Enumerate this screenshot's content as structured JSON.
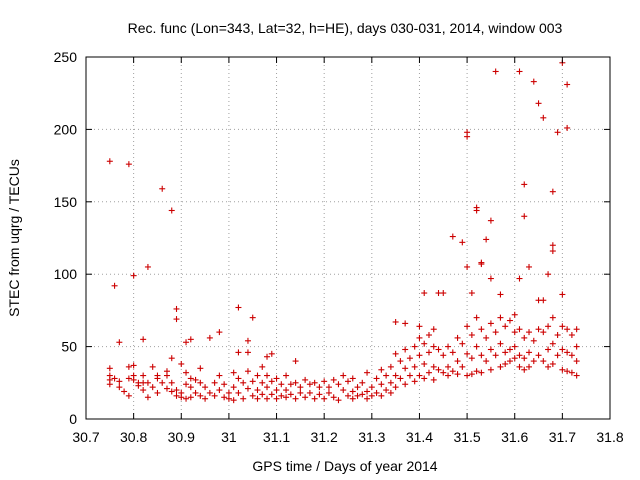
{
  "chart_data": {
    "type": "scatter",
    "title": "Rec. func (Lon=343, Lat=32, h=HE), days 030-031, 2014, window 003",
    "xlabel": "GPS time / Days of year 2014",
    "ylabel": "STEC from uqrg / TECUs",
    "xlim": [
      30.7,
      31.8
    ],
    "ylim": [
      0,
      250
    ],
    "xticks": [
      "30.7",
      "30.8",
      "30.9",
      "31",
      "31.1",
      "31.2",
      "31.3",
      "31.4",
      "31.5",
      "31.6",
      "31.7",
      "31.8"
    ],
    "yticks": [
      "0",
      "50",
      "100",
      "150",
      "200",
      "250"
    ],
    "grid": true,
    "marker": "+",
    "color": "#cc0000",
    "series": [
      {
        "name": "STEC",
        "points": [
          [
            30.75,
            178
          ],
          [
            30.76,
            92
          ],
          [
            30.77,
            53
          ],
          [
            30.79,
            176
          ],
          [
            30.8,
            99
          ],
          [
            30.82,
            55
          ],
          [
            30.83,
            105
          ],
          [
            30.86,
            159
          ],
          [
            30.88,
            144
          ],
          [
            30.89,
            76
          ],
          [
            30.89,
            69
          ],
          [
            30.91,
            53
          ],
          [
            30.92,
            55
          ],
          [
            30.94,
            35
          ],
          [
            30.96,
            56
          ],
          [
            30.98,
            60
          ],
          [
            31.02,
            77
          ],
          [
            31.02,
            46
          ],
          [
            31.04,
            54
          ],
          [
            31.04,
            46
          ],
          [
            31.05,
            70
          ],
          [
            31.07,
            36
          ],
          [
            31.08,
            43
          ],
          [
            31.09,
            45
          ],
          [
            31.14,
            40
          ],
          [
            31.35,
            67
          ],
          [
            31.37,
            66
          ],
          [
            31.4,
            64
          ],
          [
            31.41,
            87
          ],
          [
            31.43,
            62
          ],
          [
            31.44,
            87
          ],
          [
            31.45,
            87
          ],
          [
            31.47,
            126
          ],
          [
            31.49,
            122
          ],
          [
            31.5,
            105
          ],
          [
            31.5,
            198
          ],
          [
            31.5,
            195
          ],
          [
            31.51,
            87
          ],
          [
            31.52,
            146
          ],
          [
            31.52,
            144
          ],
          [
            31.53,
            108
          ],
          [
            31.53,
            107
          ],
          [
            31.54,
            124
          ],
          [
            31.55,
            137
          ],
          [
            31.55,
            97
          ],
          [
            31.56,
            240
          ],
          [
            31.57,
            86
          ],
          [
            31.6,
            60
          ],
          [
            31.61,
            240
          ],
          [
            31.61,
            97
          ],
          [
            31.62,
            162
          ],
          [
            31.62,
            140
          ],
          [
            31.63,
            105
          ],
          [
            31.64,
            233
          ],
          [
            31.65,
            218
          ],
          [
            31.66,
            208
          ],
          [
            31.67,
            100
          ],
          [
            31.68,
            157
          ],
          [
            31.68,
            120
          ],
          [
            31.68,
            116
          ],
          [
            31.69,
            198
          ],
          [
            31.7,
            246
          ],
          [
            31.7,
            86
          ],
          [
            31.71,
            231
          ],
          [
            31.71,
            201
          ],
          [
            30.75,
            35
          ],
          [
            30.75,
            30
          ],
          [
            30.75,
            27
          ],
          [
            30.75,
            24
          ],
          [
            30.76,
            28
          ],
          [
            30.77,
            26
          ],
          [
            30.77,
            22
          ],
          [
            30.78,
            19
          ],
          [
            30.79,
            36
          ],
          [
            30.79,
            28
          ],
          [
            30.79,
            16
          ],
          [
            30.8,
            37
          ],
          [
            30.8,
            30
          ],
          [
            30.8,
            27
          ],
          [
            30.81,
            25
          ],
          [
            30.81,
            23
          ],
          [
            30.82,
            30
          ],
          [
            30.82,
            25
          ],
          [
            30.82,
            20
          ],
          [
            30.83,
            25
          ],
          [
            30.83,
            15
          ],
          [
            30.84,
            22
          ],
          [
            30.84,
            36
          ],
          [
            30.85,
            30
          ],
          [
            30.85,
            28
          ],
          [
            30.85,
            18
          ],
          [
            30.86,
            25
          ],
          [
            30.87,
            33
          ],
          [
            30.87,
            30
          ],
          [
            30.87,
            21
          ],
          [
            30.88,
            42
          ],
          [
            30.88,
            25
          ],
          [
            30.88,
            19
          ],
          [
            30.89,
            20
          ],
          [
            30.89,
            16
          ],
          [
            30.9,
            38
          ],
          [
            30.9,
            18
          ],
          [
            30.9,
            15
          ],
          [
            30.91,
            32
          ],
          [
            30.91,
            14
          ],
          [
            30.91,
            24
          ],
          [
            30.92,
            28
          ],
          [
            30.92,
            22
          ],
          [
            30.92,
            15
          ],
          [
            30.93,
            27
          ],
          [
            30.93,
            18
          ],
          [
            30.94,
            25
          ],
          [
            30.94,
            16
          ],
          [
            30.95,
            22
          ],
          [
            30.95,
            14
          ],
          [
            30.96,
            18
          ],
          [
            30.97,
            25
          ],
          [
            30.97,
            16
          ],
          [
            30.98,
            30
          ],
          [
            30.98,
            20
          ],
          [
            30.99,
            15
          ],
          [
            30.99,
            24
          ],
          [
            31.0,
            18
          ],
          [
            31.0,
            14
          ],
          [
            31.01,
            32
          ],
          [
            31.01,
            22
          ],
          [
            31.01,
            13
          ],
          [
            31.02,
            28
          ],
          [
            31.02,
            18
          ],
          [
            31.03,
            25
          ],
          [
            31.03,
            14
          ],
          [
            31.04,
            33
          ],
          [
            31.04,
            21
          ],
          [
            31.05,
            26
          ],
          [
            31.05,
            16
          ],
          [
            31.06,
            30
          ],
          [
            31.06,
            20
          ],
          [
            31.06,
            14
          ],
          [
            31.07,
            25
          ],
          [
            31.07,
            17
          ],
          [
            31.08,
            30
          ],
          [
            31.08,
            22
          ],
          [
            31.08,
            14
          ],
          [
            31.09,
            26
          ],
          [
            31.09,
            17
          ],
          [
            31.1,
            28
          ],
          [
            31.1,
            20
          ],
          [
            31.1,
            14
          ],
          [
            31.11,
            24
          ],
          [
            31.11,
            16
          ],
          [
            31.12,
            30
          ],
          [
            31.12,
            20
          ],
          [
            31.12,
            15
          ],
          [
            31.13,
            24
          ],
          [
            31.13,
            17
          ],
          [
            31.14,
            25
          ],
          [
            31.14,
            14
          ],
          [
            31.15,
            22
          ],
          [
            31.15,
            18
          ],
          [
            31.16,
            27
          ],
          [
            31.16,
            15
          ],
          [
            31.17,
            24
          ],
          [
            31.17,
            18
          ],
          [
            31.18,
            25
          ],
          [
            31.18,
            14
          ],
          [
            31.19,
            22
          ],
          [
            31.19,
            17
          ],
          [
            31.2,
            26
          ],
          [
            31.2,
            14
          ],
          [
            31.21,
            22
          ],
          [
            31.21,
            18
          ],
          [
            31.22,
            27
          ],
          [
            31.22,
            15
          ],
          [
            31.23,
            24
          ],
          [
            31.23,
            13
          ],
          [
            31.24,
            30
          ],
          [
            31.24,
            20
          ],
          [
            31.25,
            26
          ],
          [
            31.25,
            16
          ],
          [
            31.26,
            28
          ],
          [
            31.26,
            19
          ],
          [
            31.26,
            14
          ],
          [
            31.27,
            22
          ],
          [
            31.27,
            16
          ],
          [
            31.28,
            25
          ],
          [
            31.28,
            17
          ],
          [
            31.29,
            32
          ],
          [
            31.29,
            19
          ],
          [
            31.29,
            14
          ],
          [
            31.3,
            22
          ],
          [
            31.3,
            16
          ],
          [
            31.31,
            28
          ],
          [
            31.31,
            18
          ],
          [
            31.32,
            34
          ],
          [
            31.32,
            24
          ],
          [
            31.32,
            16
          ],
          [
            31.33,
            30
          ],
          [
            31.33,
            20
          ],
          [
            31.34,
            36
          ],
          [
            31.34,
            25
          ],
          [
            31.34,
            18
          ],
          [
            31.35,
            45
          ],
          [
            31.35,
            30
          ],
          [
            31.35,
            22
          ],
          [
            31.36,
            40
          ],
          [
            31.36,
            28
          ],
          [
            31.37,
            48
          ],
          [
            31.37,
            35
          ],
          [
            31.37,
            24
          ],
          [
            31.38,
            42
          ],
          [
            31.38,
            30
          ],
          [
            31.39,
            50
          ],
          [
            31.39,
            36
          ],
          [
            31.39,
            26
          ],
          [
            31.4,
            56
          ],
          [
            31.4,
            44
          ],
          [
            31.4,
            30
          ],
          [
            31.41,
            52
          ],
          [
            31.41,
            38
          ],
          [
            31.41,
            28
          ],
          [
            31.42,
            58
          ],
          [
            31.42,
            46
          ],
          [
            31.42,
            32
          ],
          [
            31.43,
            50
          ],
          [
            31.43,
            36
          ],
          [
            31.43,
            27
          ],
          [
            31.44,
            48
          ],
          [
            31.44,
            34
          ],
          [
            31.45,
            44
          ],
          [
            31.45,
            32
          ],
          [
            31.46,
            50
          ],
          [
            31.46,
            36
          ],
          [
            31.46,
            30
          ],
          [
            31.47,
            46
          ],
          [
            31.47,
            33
          ],
          [
            31.48,
            56
          ],
          [
            31.48,
            40
          ],
          [
            31.48,
            31
          ],
          [
            31.49,
            52
          ],
          [
            31.49,
            36
          ],
          [
            31.5,
            64
          ],
          [
            31.5,
            45
          ],
          [
            31.5,
            30
          ],
          [
            31.51,
            58
          ],
          [
            31.51,
            42
          ],
          [
            31.51,
            31
          ],
          [
            31.52,
            70
          ],
          [
            31.52,
            50
          ],
          [
            31.52,
            33
          ],
          [
            31.53,
            62
          ],
          [
            31.53,
            44
          ],
          [
            31.53,
            32
          ],
          [
            31.54,
            56
          ],
          [
            31.54,
            40
          ],
          [
            31.55,
            66
          ],
          [
            31.55,
            48
          ],
          [
            31.55,
            34
          ],
          [
            31.56,
            60
          ],
          [
            31.56,
            44
          ],
          [
            31.57,
            70
          ],
          [
            31.57,
            52
          ],
          [
            31.57,
            36
          ],
          [
            31.58,
            64
          ],
          [
            31.58,
            46
          ],
          [
            31.58,
            38
          ],
          [
            31.59,
            68
          ],
          [
            31.59,
            48
          ],
          [
            31.59,
            40
          ],
          [
            31.6,
            72
          ],
          [
            31.6,
            50
          ],
          [
            31.6,
            42
          ],
          [
            31.61,
            62
          ],
          [
            31.61,
            44
          ],
          [
            31.61,
            36
          ],
          [
            31.62,
            56
          ],
          [
            31.62,
            42
          ],
          [
            31.62,
            34
          ],
          [
            31.63,
            60
          ],
          [
            31.63,
            46
          ],
          [
            31.63,
            36
          ],
          [
            31.64,
            54
          ],
          [
            31.64,
            40
          ],
          [
            31.65,
            82
          ],
          [
            31.65,
            62
          ],
          [
            31.65,
            44
          ],
          [
            31.66,
            82
          ],
          [
            31.66,
            60
          ],
          [
            31.66,
            40
          ],
          [
            31.67,
            64
          ],
          [
            31.67,
            48
          ],
          [
            31.67,
            36
          ],
          [
            31.68,
            70
          ],
          [
            31.68,
            52
          ],
          [
            31.68,
            38
          ],
          [
            31.69,
            58
          ],
          [
            31.69,
            44
          ],
          [
            31.7,
            64
          ],
          [
            31.7,
            48
          ],
          [
            31.7,
            34
          ],
          [
            31.71,
            62
          ],
          [
            31.71,
            46
          ],
          [
            31.71,
            33
          ],
          [
            31.72,
            58
          ],
          [
            31.72,
            44
          ],
          [
            31.72,
            32
          ],
          [
            31.73,
            62
          ],
          [
            31.73,
            50
          ],
          [
            31.73,
            40
          ],
          [
            31.73,
            30
          ]
        ]
      }
    ]
  }
}
